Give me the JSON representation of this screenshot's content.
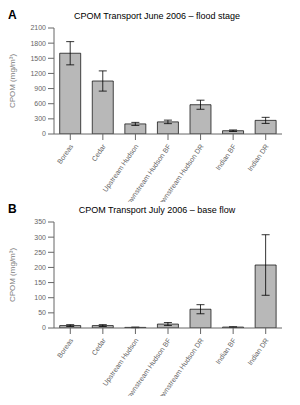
{
  "chart_data": [
    {
      "type": "bar",
      "title": "CPOM Transport  June 2006 – flood stage",
      "annotation": "A",
      "categories": [
        "Boreas",
        "Cedar",
        "Upstream Hudson",
        "Downstream Hudson BF",
        "Downstream Hudson DR",
        "Indian BF",
        "Indian DR"
      ],
      "values": [
        1600,
        1050,
        200,
        240,
        580,
        65,
        270
      ],
      "errors": [
        230,
        200,
        30,
        35,
        90,
        15,
        60
      ],
      "ylim": [
        0,
        2100
      ],
      "yticks": [
        0,
        300,
        600,
        900,
        1200,
        1500,
        1800,
        2100
      ],
      "ylabel": "CPOM (mg/m³)",
      "color": "#b8b8b8",
      "grid": false
    },
    {
      "type": "bar",
      "title": "CPOM Transport  July 2006 – base flow",
      "annotation": "B",
      "categories": [
        "Boreas",
        "Cedar",
        "Upstream Hudson",
        "Downstream Hudson BF",
        "Downstream Hudson DR",
        "Indian BF",
        "Indian DR"
      ],
      "values": [
        8,
        8,
        2,
        13,
        62,
        3,
        208
      ],
      "errors": [
        3,
        3,
        1,
        5,
        15,
        1,
        100
      ],
      "ylim": [
        0,
        350
      ],
      "yticks": [
        0,
        50,
        100,
        150,
        200,
        250,
        300,
        350
      ],
      "ylabel": "CPOM (mg/m³)",
      "color": "#b8b8b8",
      "grid": false
    }
  ]
}
